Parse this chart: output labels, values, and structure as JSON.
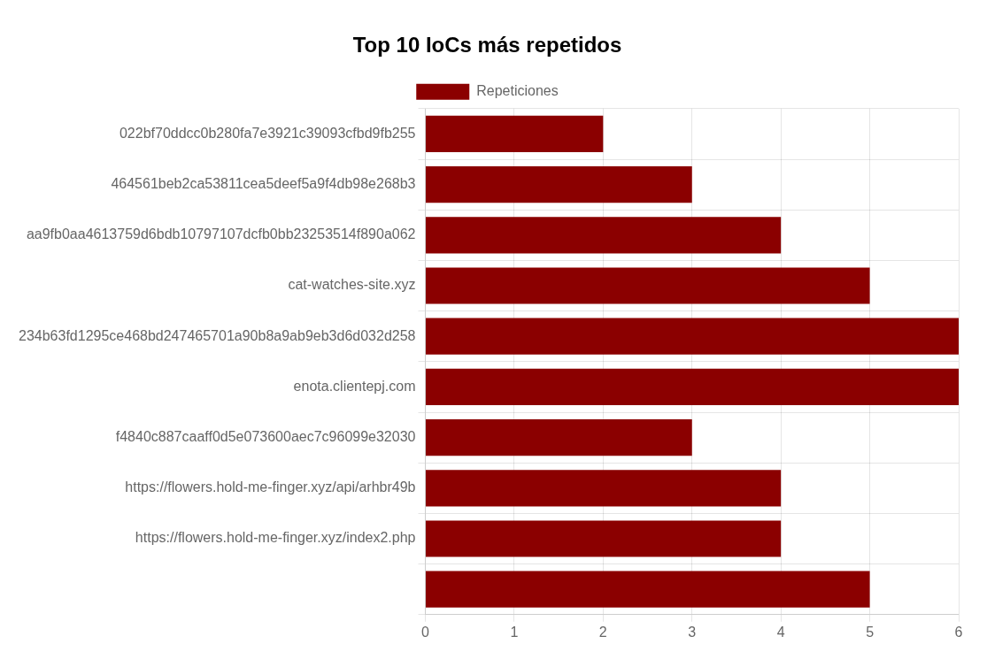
{
  "chart_data": {
    "type": "bar",
    "orientation": "horizontal",
    "title": "Top 10 IoCs más repetidos",
    "categories": [
      "022bf70ddcc0b280fa7e3921c39093cfbd9fb255",
      "464561beb2ca53811cea5deef5a9f4db98e268b3",
      "aa9fb0aa4613759d6bdb10797107dcfb0bb23253514f890a062",
      "cat-watches-site.xyz",
      "234b63fd1295ce468bd247465701a90b8a9ab9eb3d6d032d258",
      "enota.clientepj.com",
      "f4840c887caaff0d5e073600aec7c96099e32030",
      "https://flowers.hold-me-finger.xyz/api/arhbr49b",
      "https://flowers.hold-me-finger.xyz/index2.php",
      null
    ],
    "series": [
      {
        "name": "Repeticiones",
        "color": "#8b0000",
        "values": [
          2,
          3,
          4,
          5,
          6,
          6,
          3,
          4,
          4,
          5
        ]
      }
    ],
    "xlim": [
      0,
      6
    ],
    "xticks": [
      0,
      1,
      2,
      3,
      4,
      5,
      6
    ],
    "grid": true,
    "legend": "top"
  }
}
